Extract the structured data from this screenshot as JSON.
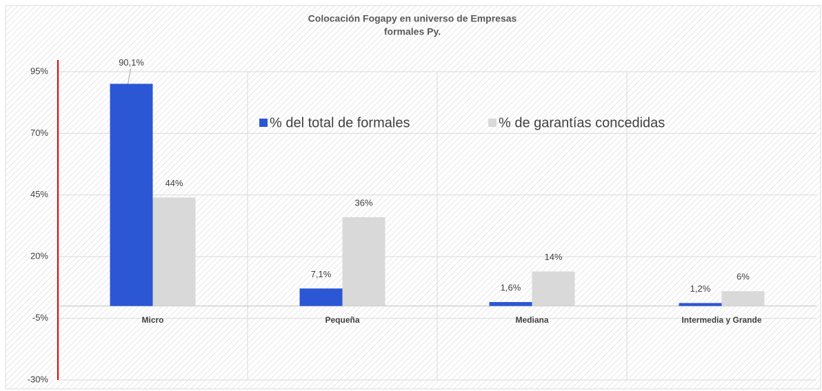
{
  "chart_data": {
    "type": "bar",
    "title": [
      "Colocación Fogapy en universo de Empresas",
      "formales Py."
    ],
    "categories": [
      "Micro",
      "Pequeña",
      "Mediana",
      "Intermedia y Grande"
    ],
    "series": [
      {
        "name": "% del total de formales",
        "color": "#2b57d4",
        "values": [
          90.1,
          7.1,
          1.6,
          1.2
        ],
        "value_labels": [
          "90,1%",
          "7,1%",
          "1,6%",
          "1,2%"
        ]
      },
      {
        "name": "% de garantías concedidas",
        "color": "#d9d9d9",
        "values": [
          44,
          36,
          14,
          6
        ],
        "value_labels": [
          "44%",
          "36%",
          "14%",
          "6%"
        ]
      }
    ],
    "ylim": [
      -30,
      95
    ],
    "yticks": [
      {
        "value": -30,
        "label": "-30%"
      },
      {
        "value": -5,
        "label": "-5%"
      },
      {
        "value": 20,
        "label": "20%"
      },
      {
        "value": 45,
        "label": "45%"
      },
      {
        "value": 70,
        "label": "70%"
      },
      {
        "value": 95,
        "label": "95%"
      }
    ],
    "grid": true,
    "y_axis_color": "#e00000"
  }
}
